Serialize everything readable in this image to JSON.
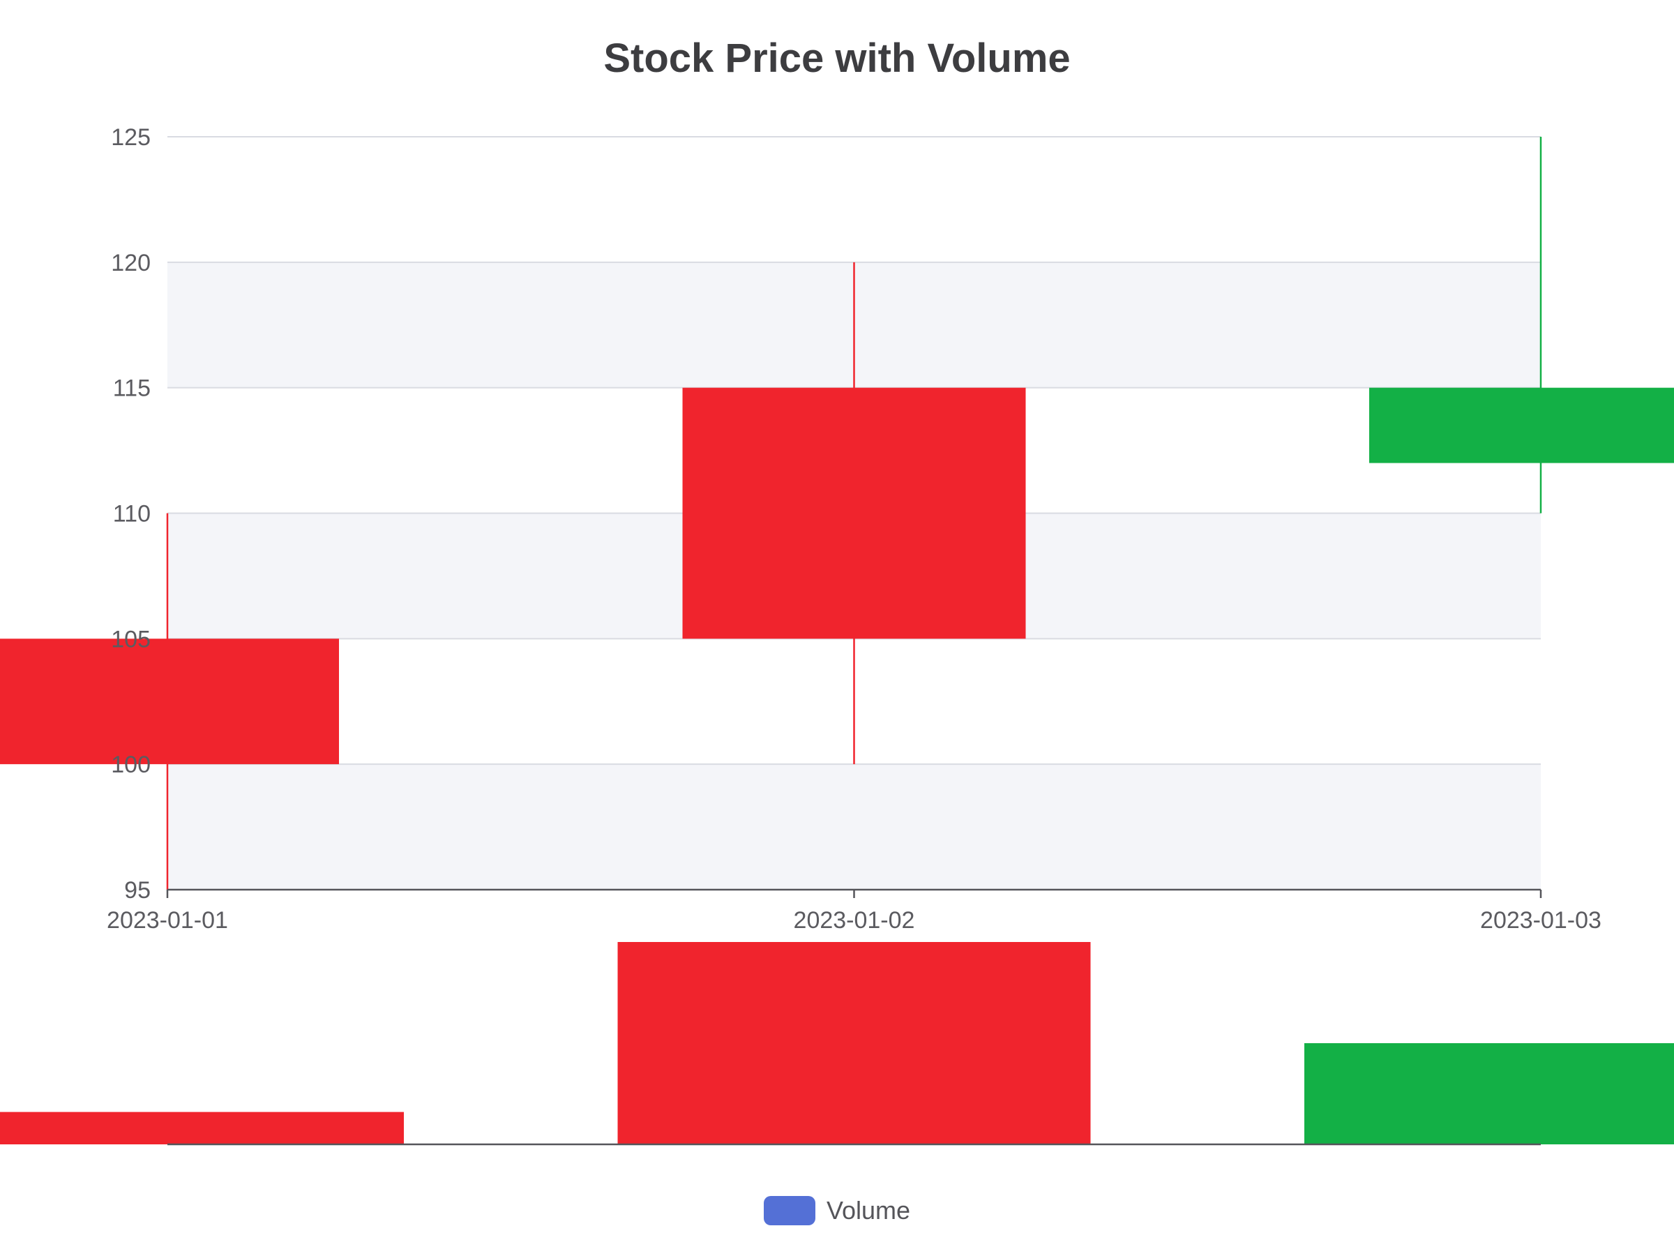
{
  "chart_data": {
    "type": "candlestick",
    "title": "Stock Price with Volume",
    "categories": [
      "2023-01-01",
      "2023-01-02",
      "2023-01-03"
    ],
    "ohlc": [
      {
        "date": "2023-01-01",
        "open": 100,
        "close": 105,
        "low": 95,
        "high": 110
      },
      {
        "date": "2023-01-02",
        "open": 105,
        "close": 115,
        "low": 100,
        "high": 120
      },
      {
        "date": "2023-01-03",
        "open": 112,
        "close": 115,
        "low": 110,
        "high": 125
      }
    ],
    "volume": [
      {
        "date": "2023-01-01",
        "value": 1600,
        "direction": "down"
      },
      {
        "date": "2023-01-02",
        "value": 10000,
        "direction": "down"
      },
      {
        "date": "2023-01-03",
        "value": 5000,
        "direction": "up"
      }
    ],
    "y_ticks": [
      "95",
      "100",
      "105",
      "110",
      "115",
      "120",
      "125"
    ],
    "ylim": [
      95,
      125
    ],
    "volume_max": 10000,
    "grid": true,
    "legend": {
      "label": "Volume",
      "placement": "bottom-center"
    },
    "colors": {
      "down": "#f0242d",
      "up": "#13b046",
      "legend_swatch": "#5470d6",
      "grid_line": "#d9dbe2",
      "band": "#f4f5f9",
      "axis": "#55555a"
    }
  }
}
